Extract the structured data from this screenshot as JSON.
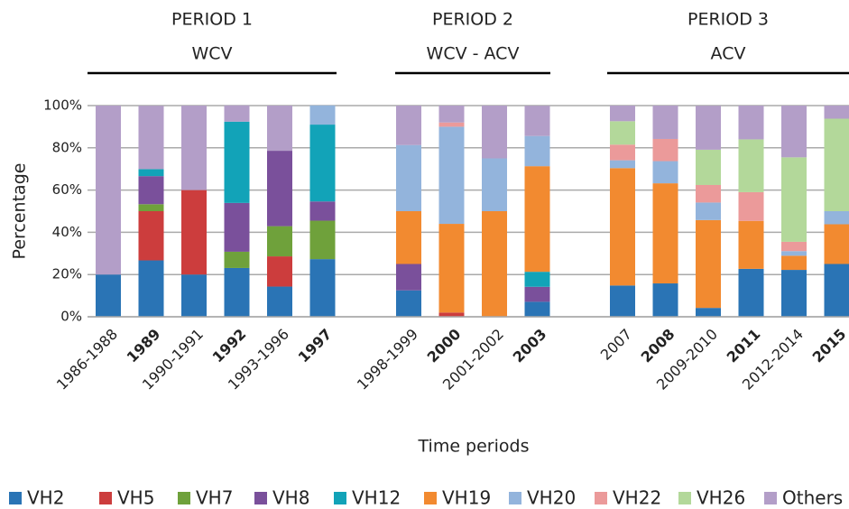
{
  "chart_data": {
    "type": "stacked_bar",
    "y_label": "Percentage",
    "x_label": "Time periods",
    "groups": [
      {
        "title": "PERIOD 1",
        "subtitle": "WCV"
      },
      {
        "title": "PERIOD 2",
        "subtitle": "WCV - ACV"
      },
      {
        "title": "PERIOD 3",
        "subtitle": "ACV"
      }
    ],
    "categories": [
      "1986-1988",
      "1989",
      "1990-1991",
      "1992",
      "1993-1996",
      "1997",
      "1998-1999",
      "2000",
      "2001-2002",
      "2003",
      "2007",
      "2008",
      "2009-2010",
      "2011",
      "2012-2014",
      "2015"
    ],
    "ylim": [
      0,
      100
    ],
    "yticks": [
      {
        "value": 0,
        "label": "0%"
      },
      {
        "value": 20,
        "label": "20%"
      },
      {
        "value": 40,
        "label": "40%"
      },
      {
        "value": 60,
        "label": "60%"
      },
      {
        "value": 80,
        "label": "80%"
      },
      {
        "value": 100,
        "label": "100%"
      }
    ],
    "grid": true,
    "legend": "bottom",
    "series": [
      {
        "name": "VH2",
        "color": "#2a74b5",
        "values": [
          20,
          26.7,
          20,
          23.1,
          14.3,
          27.3,
          12.5,
          0,
          0,
          7.1,
          14.8,
          15.8,
          4.2,
          22.7,
          22.2,
          25
        ]
      },
      {
        "name": "VH5",
        "color": "#cc3d3d",
        "values": [
          0,
          23.3,
          40,
          0,
          14.3,
          0,
          0,
          2,
          0,
          0,
          0,
          0,
          0,
          0,
          0,
          0
        ]
      },
      {
        "name": "VH7",
        "color": "#6fa13b",
        "values": [
          0,
          3.3,
          0,
          7.7,
          14.3,
          18.2,
          0,
          0,
          0,
          0,
          0,
          0,
          0,
          0,
          0,
          0
        ]
      },
      {
        "name": "VH8",
        "color": "#7a509b",
        "values": [
          0,
          13.3,
          0,
          23.1,
          35.7,
          9.1,
          12.5,
          0,
          0,
          7.1,
          0,
          0,
          0,
          0,
          0,
          0
        ]
      },
      {
        "name": "VH12",
        "color": "#12a3b8",
        "values": [
          0,
          3.3,
          0,
          38.5,
          0,
          36.4,
          0,
          0,
          0,
          7.1,
          0,
          0,
          0,
          0,
          0,
          0
        ]
      },
      {
        "name": "VH19",
        "color": "#f28a30",
        "values": [
          0,
          0,
          0,
          0,
          0,
          0,
          25,
          42,
          50,
          50,
          55.6,
          47.4,
          41.6,
          22.7,
          6.7,
          18.8
        ]
      },
      {
        "name": "VH20",
        "color": "#93b4dc",
        "values": [
          0,
          0,
          0,
          0,
          0,
          9.1,
          31.3,
          46,
          25,
          14.3,
          3.7,
          10.5,
          8.3,
          0,
          2.2,
          6.2
        ]
      },
      {
        "name": "VH22",
        "color": "#eb9a9a",
        "values": [
          0,
          0,
          0,
          0,
          0,
          0,
          0,
          2,
          0,
          0,
          7.4,
          10.5,
          8.3,
          13.6,
          4.4,
          0
        ]
      },
      {
        "name": "VH26",
        "color": "#b3d89a",
        "values": [
          0,
          0,
          0,
          0,
          0,
          0,
          0,
          0,
          0,
          0,
          11.1,
          0,
          16.7,
          25,
          40,
          43.8
        ]
      },
      {
        "name": "Others",
        "color": "#b39ec8",
        "values": [
          80,
          30,
          40,
          7.7,
          21.4,
          0,
          18.7,
          8,
          25,
          14.3,
          7.4,
          15.8,
          20.8,
          16,
          24.5,
          6.2
        ]
      }
    ]
  }
}
